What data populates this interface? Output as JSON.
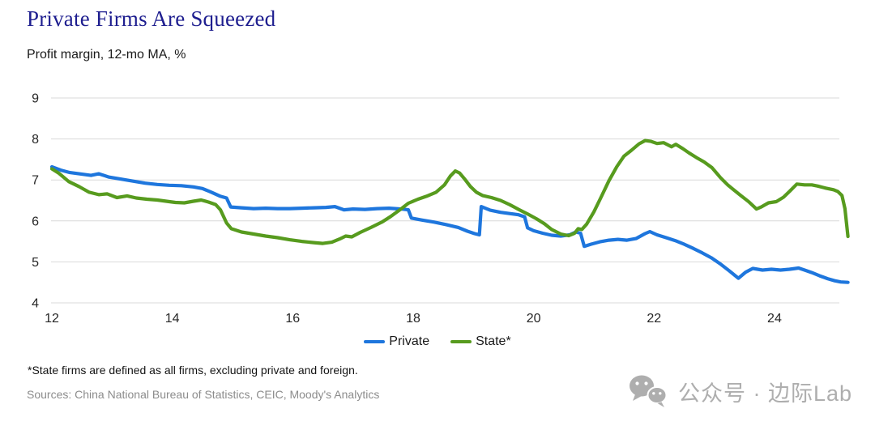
{
  "header": {
    "title": "Private Firms Are Squeezed",
    "subtitle": "Profit margin, 12-mo MA, %"
  },
  "chart_data": {
    "type": "line",
    "title": "Private Firms Are Squeezed",
    "subtitle": "Profit margin, 12-mo MA, %",
    "xlabel": "",
    "ylabel": "",
    "x_unit": "year (20xx)",
    "x_ticks": [
      12,
      14,
      16,
      18,
      20,
      22,
      24
    ],
    "y_ticks": [
      4,
      5,
      6,
      7,
      8,
      9
    ],
    "x_range": [
      12,
      25.3
    ],
    "y_range": [
      4,
      9
    ],
    "grid": "horizontal",
    "legend_position": "bottom-center",
    "series": [
      {
        "name": "Private",
        "color": "#1E76DD",
        "points": [
          [
            12.0,
            7.32
          ],
          [
            12.15,
            7.24
          ],
          [
            12.3,
            7.18
          ],
          [
            12.5,
            7.14
          ],
          [
            12.65,
            7.11
          ],
          [
            12.78,
            7.15
          ],
          [
            12.95,
            7.07
          ],
          [
            13.15,
            7.02
          ],
          [
            13.35,
            6.97
          ],
          [
            13.55,
            6.92
          ],
          [
            13.75,
            6.89
          ],
          [
            13.95,
            6.87
          ],
          [
            14.15,
            6.86
          ],
          [
            14.35,
            6.83
          ],
          [
            14.5,
            6.79
          ],
          [
            14.65,
            6.7
          ],
          [
            14.8,
            6.6
          ],
          [
            14.9,
            6.56
          ],
          [
            14.97,
            6.34
          ],
          [
            15.15,
            6.32
          ],
          [
            15.35,
            6.3
          ],
          [
            15.55,
            6.31
          ],
          [
            15.75,
            6.3
          ],
          [
            15.95,
            6.3
          ],
          [
            16.15,
            6.31
          ],
          [
            16.35,
            6.32
          ],
          [
            16.55,
            6.33
          ],
          [
            16.7,
            6.35
          ],
          [
            16.85,
            6.27
          ],
          [
            17.0,
            6.29
          ],
          [
            17.2,
            6.28
          ],
          [
            17.4,
            6.3
          ],
          [
            17.6,
            6.31
          ],
          [
            17.8,
            6.29
          ],
          [
            17.92,
            6.27
          ],
          [
            17.97,
            6.07
          ],
          [
            18.15,
            6.02
          ],
          [
            18.35,
            5.97
          ],
          [
            18.55,
            5.91
          ],
          [
            18.75,
            5.84
          ],
          [
            18.9,
            5.75
          ],
          [
            19.02,
            5.69
          ],
          [
            19.1,
            5.66
          ],
          [
            19.13,
            6.35
          ],
          [
            19.28,
            6.26
          ],
          [
            19.45,
            6.21
          ],
          [
            19.6,
            6.18
          ],
          [
            19.75,
            6.15
          ],
          [
            19.85,
            6.1
          ],
          [
            19.9,
            5.83
          ],
          [
            20.0,
            5.76
          ],
          [
            20.15,
            5.7
          ],
          [
            20.3,
            5.65
          ],
          [
            20.45,
            5.63
          ],
          [
            20.6,
            5.66
          ],
          [
            20.7,
            5.73
          ],
          [
            20.78,
            5.7
          ],
          [
            20.84,
            5.38
          ],
          [
            20.95,
            5.43
          ],
          [
            21.1,
            5.49
          ],
          [
            21.25,
            5.53
          ],
          [
            21.4,
            5.55
          ],
          [
            21.55,
            5.53
          ],
          [
            21.7,
            5.57
          ],
          [
            21.85,
            5.69
          ],
          [
            21.93,
            5.74
          ],
          [
            22.05,
            5.66
          ],
          [
            22.2,
            5.59
          ],
          [
            22.35,
            5.52
          ],
          [
            22.5,
            5.43
          ],
          [
            22.65,
            5.33
          ],
          [
            22.8,
            5.22
          ],
          [
            22.95,
            5.1
          ],
          [
            23.1,
            4.95
          ],
          [
            23.25,
            4.78
          ],
          [
            23.4,
            4.6
          ],
          [
            23.52,
            4.75
          ],
          [
            23.64,
            4.84
          ],
          [
            23.8,
            4.8
          ],
          [
            23.95,
            4.82
          ],
          [
            24.1,
            4.8
          ],
          [
            24.25,
            4.82
          ],
          [
            24.4,
            4.85
          ],
          [
            24.5,
            4.8
          ],
          [
            24.62,
            4.74
          ],
          [
            24.75,
            4.66
          ],
          [
            24.88,
            4.59
          ],
          [
            25.0,
            4.54
          ],
          [
            25.1,
            4.51
          ],
          [
            25.22,
            4.5
          ]
        ]
      },
      {
        "name": "State*",
        "color": "#579B1E",
        "points": [
          [
            12.0,
            7.27
          ],
          [
            12.12,
            7.16
          ],
          [
            12.28,
            6.96
          ],
          [
            12.45,
            6.84
          ],
          [
            12.62,
            6.7
          ],
          [
            12.78,
            6.64
          ],
          [
            12.92,
            6.66
          ],
          [
            13.08,
            6.57
          ],
          [
            13.25,
            6.61
          ],
          [
            13.4,
            6.56
          ],
          [
            13.58,
            6.53
          ],
          [
            13.75,
            6.51
          ],
          [
            13.9,
            6.48
          ],
          [
            14.05,
            6.45
          ],
          [
            14.2,
            6.44
          ],
          [
            14.35,
            6.48
          ],
          [
            14.48,
            6.51
          ],
          [
            14.6,
            6.46
          ],
          [
            14.72,
            6.4
          ],
          [
            14.8,
            6.27
          ],
          [
            14.9,
            5.95
          ],
          [
            14.98,
            5.81
          ],
          [
            15.15,
            5.73
          ],
          [
            15.35,
            5.68
          ],
          [
            15.55,
            5.63
          ],
          [
            15.75,
            5.59
          ],
          [
            15.95,
            5.54
          ],
          [
            16.15,
            5.5
          ],
          [
            16.35,
            5.47
          ],
          [
            16.5,
            5.45
          ],
          [
            16.65,
            5.48
          ],
          [
            16.78,
            5.56
          ],
          [
            16.88,
            5.63
          ],
          [
            16.98,
            5.61
          ],
          [
            17.12,
            5.72
          ],
          [
            17.3,
            5.84
          ],
          [
            17.48,
            5.97
          ],
          [
            17.62,
            6.1
          ],
          [
            17.78,
            6.27
          ],
          [
            17.92,
            6.43
          ],
          [
            18.08,
            6.53
          ],
          [
            18.22,
            6.6
          ],
          [
            18.38,
            6.7
          ],
          [
            18.52,
            6.88
          ],
          [
            18.62,
            7.1
          ],
          [
            18.7,
            7.22
          ],
          [
            18.77,
            7.17
          ],
          [
            18.85,
            7.03
          ],
          [
            18.95,
            6.84
          ],
          [
            19.05,
            6.7
          ],
          [
            19.15,
            6.62
          ],
          [
            19.3,
            6.57
          ],
          [
            19.45,
            6.5
          ],
          [
            19.6,
            6.4
          ],
          [
            19.75,
            6.28
          ],
          [
            19.9,
            6.17
          ],
          [
            20.05,
            6.05
          ],
          [
            20.18,
            5.93
          ],
          [
            20.3,
            5.79
          ],
          [
            20.45,
            5.68
          ],
          [
            20.58,
            5.64
          ],
          [
            20.68,
            5.7
          ],
          [
            20.74,
            5.81
          ],
          [
            20.8,
            5.79
          ],
          [
            20.88,
            5.92
          ],
          [
            21.0,
            6.22
          ],
          [
            21.12,
            6.58
          ],
          [
            21.25,
            6.98
          ],
          [
            21.38,
            7.32
          ],
          [
            21.5,
            7.58
          ],
          [
            21.62,
            7.72
          ],
          [
            21.75,
            7.88
          ],
          [
            21.85,
            7.96
          ],
          [
            21.95,
            7.94
          ],
          [
            22.05,
            7.89
          ],
          [
            22.16,
            7.91
          ],
          [
            22.29,
            7.81
          ],
          [
            22.36,
            7.87
          ],
          [
            22.48,
            7.76
          ],
          [
            22.58,
            7.66
          ],
          [
            22.7,
            7.55
          ],
          [
            22.83,
            7.44
          ],
          [
            22.96,
            7.3
          ],
          [
            23.1,
            7.06
          ],
          [
            23.23,
            6.87
          ],
          [
            23.32,
            6.76
          ],
          [
            23.43,
            6.63
          ],
          [
            23.57,
            6.47
          ],
          [
            23.7,
            6.29
          ],
          [
            23.78,
            6.34
          ],
          [
            23.9,
            6.44
          ],
          [
            24.03,
            6.47
          ],
          [
            24.15,
            6.58
          ],
          [
            24.25,
            6.72
          ],
          [
            24.37,
            6.9
          ],
          [
            24.5,
            6.88
          ],
          [
            24.62,
            6.88
          ],
          [
            24.72,
            6.85
          ],
          [
            24.85,
            6.8
          ],
          [
            24.98,
            6.76
          ],
          [
            25.05,
            6.72
          ],
          [
            25.12,
            6.62
          ],
          [
            25.17,
            6.3
          ],
          [
            25.22,
            5.62
          ]
        ]
      }
    ]
  },
  "footnote": "*State  firms are defined as all firms, excluding private and foreign.",
  "sources": "Sources: China National Bureau of Statistics, CEIC, Moody's Analytics",
  "watermark": {
    "icon": "wechat-icon",
    "text": "公众号 · 边际Lab"
  },
  "colors": {
    "title": "#1E1E8F",
    "axis_text": "#262626",
    "grid": "#D9D9D9",
    "sources": "#8C8C8C",
    "watermark": "#AEAEAE",
    "background": "#FFFFFF"
  }
}
